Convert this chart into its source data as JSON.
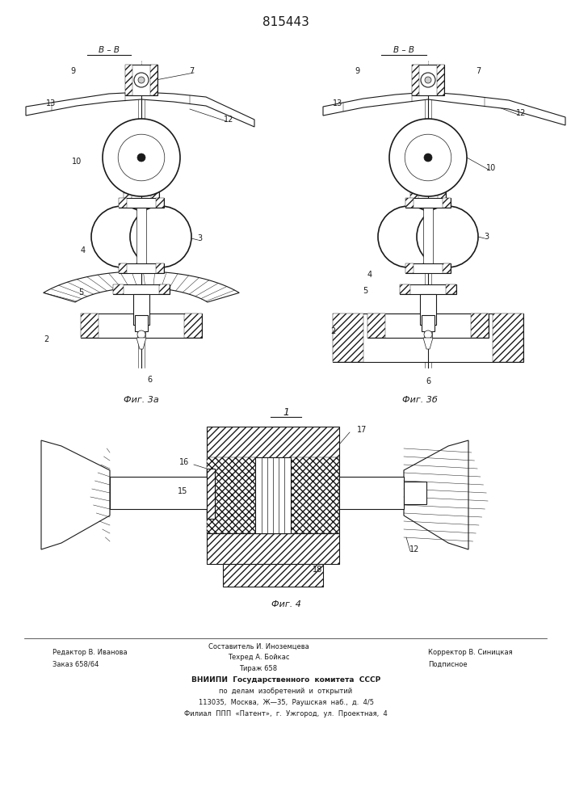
{
  "patent_number": "815443",
  "bg_color": "#ffffff",
  "line_color": "#1a1a1a",
  "footer_col1_line1": "Редактор В. Иванова",
  "footer_col1_line2": "Заказ 658/64",
  "footer_col2_line0": "Составитель И. Иноземцева",
  "footer_col2_line1": "Техред А. Бойкас",
  "footer_col2_line2": "Тираж 658",
  "footer_col3_line1": "Корректор В. Синицкая",
  "footer_col3_line2": "Подписное",
  "vniiipi_1": "ВНИИПИ  Государственного  комитета  СССР",
  "vniiipi_2": "по  делам  изобретений  и  открытий",
  "vniiipi_3": "113035,  Москва,  Ж—35,  Раушская  наб.,  д.  4/5",
  "vniiipi_4": "Филиал  ППП  «Патент»,  г.  Ужгород,  ул.  Проектная,  4"
}
